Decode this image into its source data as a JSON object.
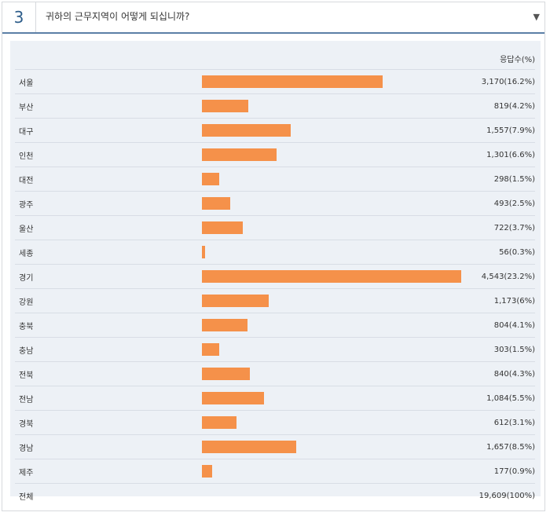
{
  "question": {
    "number": "3",
    "title": "귀하의 근무지역이 어떻게 되십니까?",
    "collapse_icon": "triangle-down-icon",
    "collapse_glyph": "▼"
  },
  "table": {
    "column_header": "응답수(%)",
    "total": {
      "label": "전체",
      "display": "19,609(100%)"
    }
  },
  "colors": {
    "bar": "#f5914a",
    "panel": "#edf1f6",
    "accent": "#2d5d8a"
  },
  "chart_data": {
    "type": "bar",
    "orientation": "horizontal",
    "categories": [
      "서울",
      "부산",
      "대구",
      "인천",
      "대전",
      "광주",
      "울산",
      "세종",
      "경기",
      "강원",
      "충북",
      "충남",
      "전북",
      "전남",
      "경북",
      "경남",
      "제주"
    ],
    "values": [
      3170,
      819,
      1557,
      1301,
      298,
      493,
      722,
      56,
      4543,
      1173,
      804,
      303,
      840,
      1084,
      612,
      1657,
      177
    ],
    "display": [
      "3,170(16.2%)",
      "819(4.2%)",
      "1,557(7.9%)",
      "1,301(6.6%)",
      "298(1.5%)",
      "493(2.5%)",
      "722(3.7%)",
      "56(0.3%)",
      "4,543(23.2%)",
      "1,173(6%)",
      "804(4.1%)",
      "303(1.5%)",
      "840(4.3%)",
      "1,084(5.5%)",
      "612(3.1%)",
      "1,657(8.5%)",
      "177(0.9%)"
    ]
  }
}
